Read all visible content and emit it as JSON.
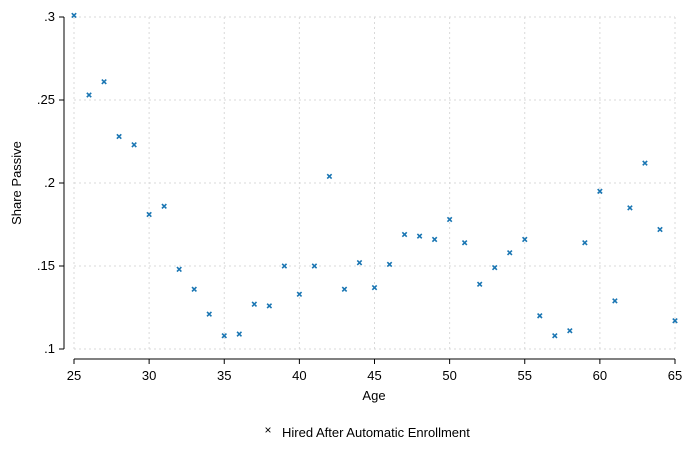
{
  "chart_data": {
    "type": "scatter",
    "title": "",
    "xlabel": "Age",
    "ylabel": "Share Passive",
    "xlim": [
      25,
      65
    ],
    "ylim": [
      0.1,
      0.3
    ],
    "x_ticks": [
      25,
      30,
      35,
      40,
      45,
      50,
      55,
      60,
      65
    ],
    "y_ticks": [
      0.1,
      0.15,
      0.2,
      0.25,
      0.3
    ],
    "x_tick_labels": [
      "25",
      "30",
      "35",
      "40",
      "45",
      "50",
      "55",
      "60",
      "65"
    ],
    "y_tick_labels": [
      ".1",
      ".15",
      ".2",
      ".25",
      ".3"
    ],
    "grid": true,
    "legend_position": "bottom",
    "marker": "×",
    "series": [
      {
        "name": "Hired After Automatic Enrollment",
        "color": "#1a76b3",
        "x": [
          25,
          26,
          27,
          28,
          29,
          30,
          31,
          32,
          33,
          34,
          35,
          36,
          37,
          38,
          39,
          40,
          41,
          42,
          43,
          44,
          45,
          46,
          47,
          48,
          49,
          50,
          51,
          52,
          53,
          54,
          55,
          56,
          57,
          58,
          59,
          60,
          61,
          62,
          63,
          64,
          65
        ],
        "y": [
          0.301,
          0.253,
          0.261,
          0.228,
          0.223,
          0.181,
          0.186,
          0.148,
          0.136,
          0.121,
          0.108,
          0.109,
          0.127,
          0.126,
          0.15,
          0.133,
          0.15,
          0.204,
          0.136,
          0.152,
          0.137,
          0.151,
          0.169,
          0.168,
          0.166,
          0.178,
          0.164,
          0.139,
          0.149,
          0.158,
          0.166,
          0.12,
          0.108,
          0.111,
          0.164,
          0.195,
          0.129,
          0.185,
          0.212,
          0.172,
          0.117
        ]
      }
    ]
  }
}
